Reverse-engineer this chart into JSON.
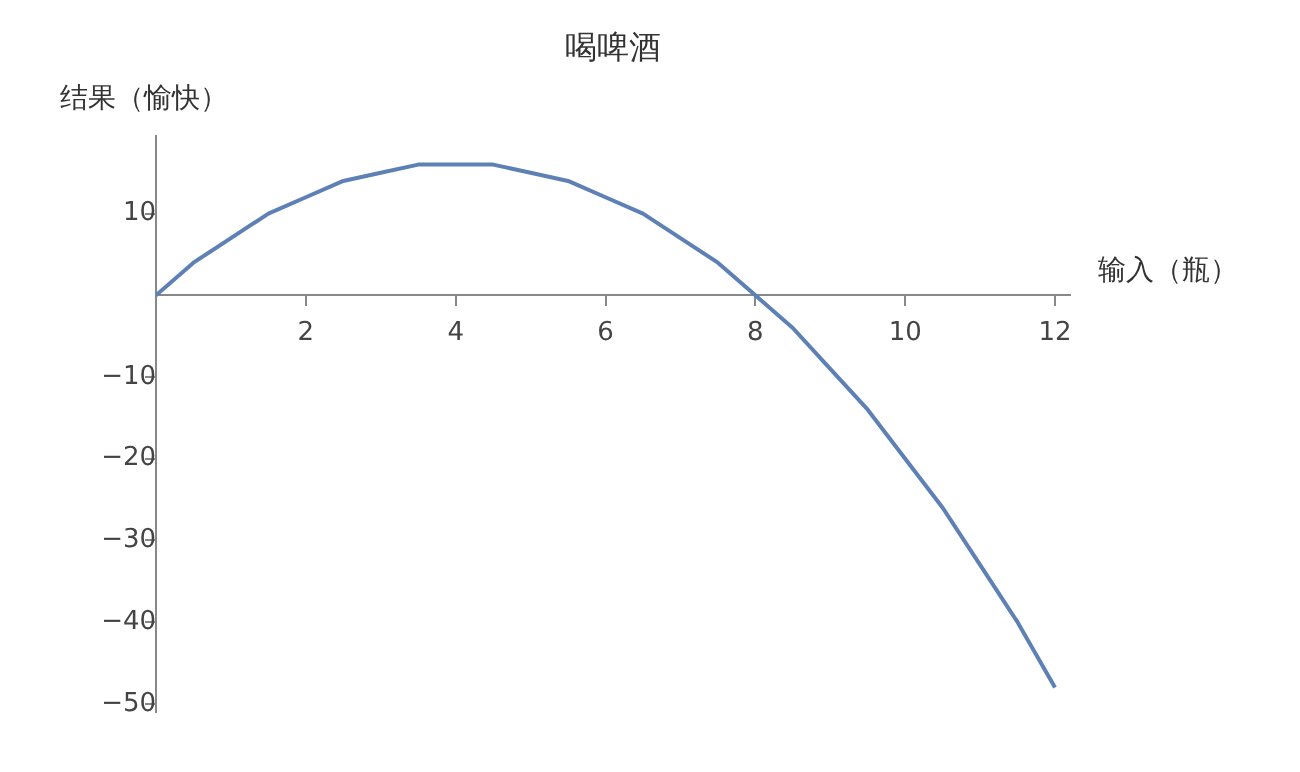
{
  "chart_data": {
    "type": "line",
    "title": "喝啤酒",
    "xlabel": "输入（瓶）",
    "ylabel": "结果（愉快）",
    "x": [
      0,
      0.5,
      1,
      1.5,
      2,
      2.5,
      3,
      3.5,
      4,
      4.5,
      5,
      5.5,
      6,
      6.5,
      7,
      7.5,
      8,
      8.5,
      9,
      9.5,
      10,
      10.5,
      11,
      11.5,
      12
    ],
    "series": [
      {
        "color": "#5e81b5",
        "values": [
          0,
          4,
          7,
          10,
          12,
          14,
          15,
          16,
          16,
          16,
          15,
          14,
          12,
          10,
          7,
          4,
          0,
          -4,
          -9,
          -14,
          -20,
          -26,
          -33,
          -40,
          -48
        ]
      }
    ],
    "xlim": [
      0,
      12.2
    ],
    "ylim": [
      -51,
      19.5
    ],
    "xticks": [
      2,
      4,
      6,
      8,
      10,
      12
    ],
    "yticks": [
      -50,
      -40,
      -30,
      -20,
      -10,
      10
    ],
    "grid": false,
    "legend": false,
    "marker": "none",
    "line_style": "solid"
  }
}
